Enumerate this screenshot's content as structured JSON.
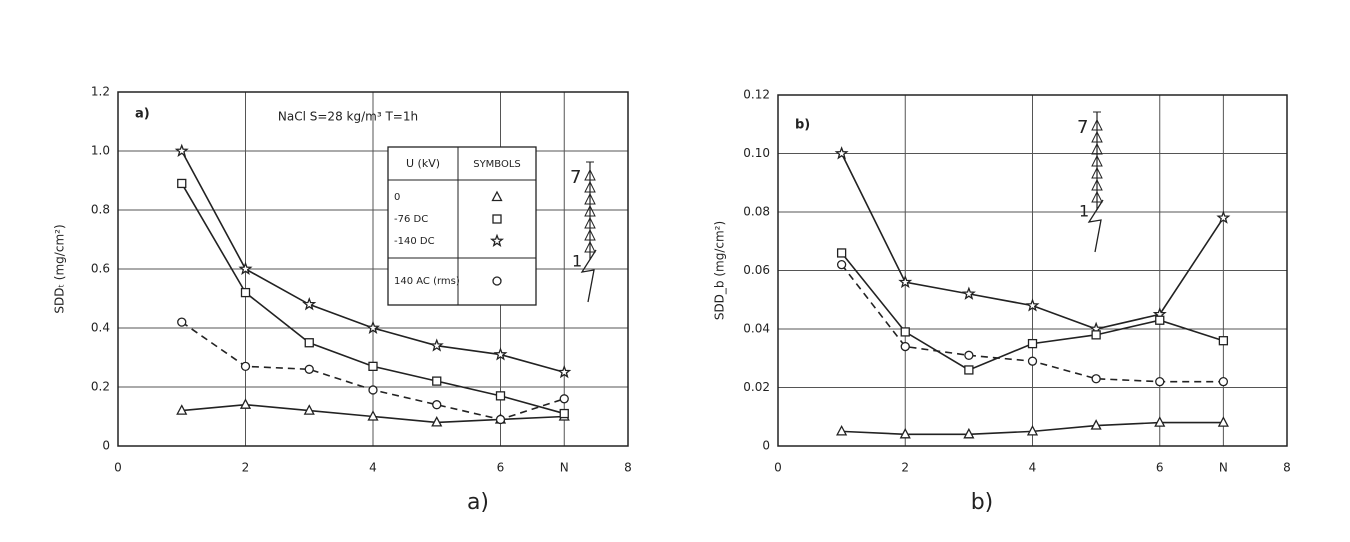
{
  "chart_data": [
    {
      "type": "line",
      "panel_label": "a)",
      "annotation": "NaCl  S=28 kg/m³  T=1h",
      "caption": "a)",
      "ylabel": "SDDₜ (mg/cm²)",
      "x": [
        1,
        2,
        3,
        4,
        5,
        6,
        7
      ],
      "xlim": [
        0,
        8
      ],
      "xticks": [
        0,
        2,
        4,
        6,
        {
          "value": 7,
          "label": "N"
        },
        8
      ],
      "ylim": [
        0,
        1.2
      ],
      "yticks": [
        0,
        0.2,
        0.4,
        0.6,
        0.8,
        {
          "value": 1,
          "label": "1.0"
        },
        1.2
      ],
      "grid": true,
      "legend_headers": [
        "U (kV)",
        "SYMBOLS"
      ],
      "string_labels": [
        "7",
        "1"
      ],
      "series": [
        {
          "name": "0",
          "marker": "triangle",
          "dashed": false,
          "color": "#222222",
          "values": [
            0.12,
            0.14,
            0.12,
            0.1,
            0.08,
            0.09,
            0.1
          ]
        },
        {
          "name": "-76 DC",
          "marker": "square",
          "dashed": false,
          "color": "#222222",
          "values": [
            0.89,
            0.52,
            0.35,
            0.27,
            0.22,
            0.17,
            0.11
          ]
        },
        {
          "name": "-140 DC",
          "marker": "star",
          "dashed": false,
          "color": "#222222",
          "values": [
            1.0,
            0.6,
            0.48,
            0.4,
            0.34,
            0.31,
            0.25
          ]
        },
        {
          "name": "140 AC (rms)",
          "marker": "circle",
          "dashed": true,
          "color": "#222222",
          "values": [
            0.42,
            0.27,
            0.26,
            0.19,
            0.14,
            0.09,
            0.16
          ]
        }
      ]
    },
    {
      "type": "line",
      "panel_label": "b)",
      "caption": "b)",
      "ylabel": "SDD_b (mg/cm²)",
      "x": [
        1,
        2,
        3,
        4,
        5,
        6,
        7
      ],
      "xlim": [
        0,
        8
      ],
      "xticks": [
        0,
        2,
        4,
        6,
        {
          "value": 7,
          "label": "N"
        },
        8
      ],
      "ylim": [
        0,
        0.12
      ],
      "yticks": [
        0,
        0.02,
        0.04,
        0.06,
        0.08,
        {
          "value": 0.1,
          "label": "0.10"
        },
        0.12
      ],
      "grid": true,
      "string_labels": [
        "7",
        "1"
      ],
      "series": [
        {
          "marker": "star",
          "dashed": false,
          "color": "#222222",
          "values": [
            0.1,
            0.056,
            0.052,
            0.048,
            0.04,
            0.045,
            0.078
          ]
        },
        {
          "marker": "square",
          "dashed": false,
          "color": "#222222",
          "values": [
            0.066,
            0.039,
            0.026,
            0.035,
            0.038,
            0.043,
            0.036
          ]
        },
        {
          "marker": "circle",
          "dashed": true,
          "color": "#222222",
          "values": [
            0.062,
            0.034,
            0.031,
            0.029,
            0.023,
            0.022,
            0.022
          ]
        },
        {
          "marker": "triangle",
          "dashed": false,
          "color": "#222222",
          "values": [
            0.005,
            0.004,
            0.004,
            0.005,
            0.007,
            0.008,
            0.008
          ]
        }
      ]
    }
  ]
}
